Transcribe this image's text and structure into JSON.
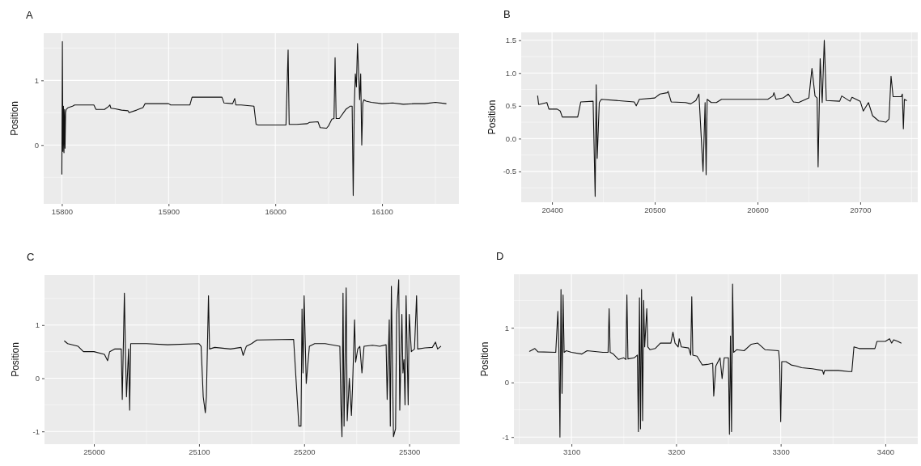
{
  "chart_data": [
    {
      "type": "line",
      "title": "A",
      "ylabel": "Position",
      "xlim": [
        15783,
        16172
      ],
      "ylim": [
        -0.91,
        1.73
      ],
      "xticks": [
        15800,
        15900,
        16000,
        16100
      ],
      "yticks": [
        0,
        1
      ],
      "grid": true,
      "marker": "none",
      "line_style": "solid",
      "series": [
        {
          "color": "#111111",
          "x": [
            15800,
            15800.5,
            15801,
            15801.5,
            15802,
            15802.5,
            15803,
            15803.5,
            15804,
            15806,
            15810,
            15812,
            15830,
            15832,
            15840,
            15844,
            15845,
            15846,
            15850,
            15856,
            15862,
            15863,
            15870,
            15876,
            15878,
            15900,
            15902,
            15920,
            15922,
            15950,
            15952,
            15960,
            15962,
            15963,
            15964,
            15968,
            15980,
            15982,
            15984,
            15990,
            16000,
            16010,
            16012,
            16013,
            16020,
            16030,
            16032,
            16040,
            16042,
            16048,
            16050,
            16053,
            16055,
            16056,
            16057,
            16060,
            16066,
            16070,
            16072,
            16073,
            16074,
            16075,
            16076,
            16077,
            16078,
            16079,
            16080,
            16081,
            16082,
            16083,
            16085,
            16090,
            16100,
            16110,
            16120,
            16130,
            16140,
            16150,
            16160
          ],
          "values": [
            -0.45,
            1.6,
            -0.1,
            0.6,
            -0.12,
            0.55,
            -0.05,
            0.5,
            0.55,
            0.58,
            0.6,
            0.62,
            0.62,
            0.55,
            0.55,
            0.6,
            0.62,
            0.57,
            0.56,
            0.54,
            0.53,
            0.5,
            0.54,
            0.58,
            0.64,
            0.64,
            0.62,
            0.62,
            0.74,
            0.74,
            0.65,
            0.64,
            0.72,
            0.62,
            0.62,
            0.62,
            0.6,
            0.32,
            0.31,
            0.31,
            0.31,
            0.31,
            1.47,
            0.32,
            0.32,
            0.33,
            0.35,
            0.36,
            0.27,
            0.26,
            0.3,
            0.4,
            0.41,
            1.35,
            0.41,
            0.41,
            0.55,
            0.6,
            0.6,
            -0.78,
            0.6,
            1.1,
            0.9,
            1.57,
            1.15,
            0.7,
            1.1,
            0.0,
            0.65,
            0.7,
            0.68,
            0.66,
            0.64,
            0.65,
            0.63,
            0.64,
            0.64,
            0.66,
            0.64
          ]
        }
      ]
    },
    {
      "type": "line",
      "title": "B",
      "ylabel": "Position",
      "xlim": [
        20370,
        20756
      ],
      "ylim": [
        -0.97,
        1.62
      ],
      "xticks": [
        20400,
        20500,
        20600,
        20700
      ],
      "yticks": [
        {
          "value": -0.5,
          "label": "-0.5"
        },
        {
          "value": 0,
          "label": "0.0"
        },
        {
          "value": 0.5,
          "label": "0.5"
        },
        {
          "value": 1,
          "label": "1.0"
        },
        {
          "value": 1.5,
          "label": "1.5"
        }
      ],
      "grid": true,
      "marker": "none",
      "line_style": "solid",
      "series": [
        {
          "color": "#111111",
          "x": [
            20386,
            20387,
            20395,
            20397,
            20405,
            20408,
            20410,
            20425,
            20428,
            20440,
            20442,
            20443,
            20444,
            20446,
            20448,
            20480,
            20482,
            20485,
            20500,
            20505,
            20512,
            20513,
            20516,
            20530,
            20535,
            20540,
            20543,
            20547,
            20549,
            20550,
            20551,
            20555,
            20560,
            20565,
            20610,
            20615,
            20616,
            20618,
            20625,
            20630,
            20635,
            20640,
            20650,
            20653,
            20656,
            20658,
            20659,
            20661,
            20663,
            20665,
            20667,
            20680,
            20682,
            20690,
            20692,
            20700,
            20703,
            20708,
            20712,
            20718,
            20725,
            20728,
            20730,
            20732,
            20740,
            20741,
            20742,
            20743,
            20745
          ],
          "values": [
            0.65,
            0.52,
            0.55,
            0.45,
            0.45,
            0.42,
            0.33,
            0.33,
            0.56,
            0.57,
            -0.88,
            0.82,
            -0.3,
            0.55,
            0.6,
            0.56,
            0.5,
            0.6,
            0.62,
            0.68,
            0.7,
            0.72,
            0.56,
            0.55,
            0.53,
            0.58,
            0.68,
            -0.5,
            0.55,
            -0.55,
            0.6,
            0.55,
            0.55,
            0.6,
            0.6,
            0.65,
            0.7,
            0.6,
            0.62,
            0.68,
            0.56,
            0.55,
            0.62,
            1.07,
            0.65,
            0.62,
            -0.43,
            1.22,
            0.55,
            1.5,
            0.58,
            0.57,
            0.65,
            0.57,
            0.63,
            0.57,
            0.42,
            0.55,
            0.35,
            0.27,
            0.25,
            0.3,
            0.95,
            0.64,
            0.64,
            0.68,
            0.15,
            0.6,
            0.58
          ]
        }
      ]
    },
    {
      "type": "line",
      "title": "C",
      "ylabel": "Position",
      "xlim": [
        24953,
        25348
      ],
      "ylim": [
        -1.24,
        1.94
      ],
      "xticks": [
        25000,
        25100,
        25200,
        25300
      ],
      "yticks": [
        -1,
        0,
        1
      ],
      "grid": true,
      "marker": "none",
      "line_style": "solid",
      "series": [
        {
          "color": "#111111",
          "x": [
            24972,
            24975,
            24985,
            24990,
            25000,
            25010,
            25013,
            25015,
            25020,
            25026,
            25027,
            25029,
            25030,
            25031,
            25033,
            25034,
            25035,
            25050,
            25070,
            25100,
            25102,
            25104,
            25106,
            25107,
            25109,
            25110,
            25115,
            25130,
            25140,
            25142,
            25145,
            25150,
            25155,
            25190,
            25195,
            25197,
            25198,
            25199,
            25200,
            25202,
            25205,
            25210,
            25220,
            25234,
            25235,
            25236,
            25237,
            25238,
            25239,
            25240,
            25241,
            25243,
            25245,
            25246,
            25248,
            25249,
            25251,
            25253,
            25255,
            25257,
            25265,
            25272,
            25278,
            25279,
            25281,
            25282,
            25283,
            25285,
            25287,
            25288,
            25290,
            25291,
            25293,
            25294,
            25295,
            25296,
            25297,
            25299,
            25300,
            25302,
            25305,
            25307,
            25308,
            25315,
            25322,
            25325,
            25327,
            25330
          ],
          "values": [
            0.7,
            0.65,
            0.6,
            0.5,
            0.5,
            0.45,
            0.33,
            0.5,
            0.55,
            0.55,
            -0.4,
            1.6,
            0.5,
            -0.35,
            0.55,
            -0.6,
            0.65,
            0.65,
            0.63,
            0.65,
            0.6,
            -0.35,
            -0.65,
            -0.35,
            1.55,
            0.55,
            0.58,
            0.55,
            0.58,
            0.43,
            0.6,
            0.65,
            0.72,
            0.73,
            -0.9,
            -0.9,
            1.3,
            0.1,
            1.55,
            -0.1,
            0.6,
            0.65,
            0.65,
            0.6,
            -0.5,
            -1.1,
            1.6,
            -0.9,
            0.4,
            1.7,
            -0.8,
            0.0,
            -0.7,
            -0.2,
            1.1,
            0.3,
            0.55,
            0.6,
            0.1,
            0.6,
            0.62,
            0.6,
            0.63,
            -0.4,
            1.1,
            -0.9,
            1.73,
            -1.1,
            -0.95,
            1.2,
            1.85,
            -0.6,
            1.2,
            0.1,
            0.35,
            -0.5,
            1.55,
            -0.5,
            1.2,
            0.5,
            0.55,
            1.55,
            0.55,
            0.57,
            0.58,
            0.68,
            0.55,
            0.6
          ]
        }
      ]
    },
    {
      "type": "line",
      "title": "D",
      "ylabel": "Position",
      "xlim": [
        3045,
        3431
      ],
      "ylim": [
        -1.13,
        1.98
      ],
      "xticks": [
        3100,
        3200,
        3300,
        3400
      ],
      "yticks": [
        -1,
        0,
        1
      ],
      "grid": true,
      "marker": "none",
      "line_style": "solid",
      "series": [
        {
          "color": "#111111",
          "x": [
            3060,
            3065,
            3068,
            3085,
            3087,
            3088,
            3089,
            3090,
            3091,
            3092,
            3093,
            3095,
            3100,
            3110,
            3115,
            3130,
            3135,
            3136,
            3137,
            3140,
            3145,
            3150,
            3152,
            3153,
            3154,
            3160,
            3163,
            3164,
            3165,
            3166,
            3167,
            3168,
            3169,
            3170,
            3172,
            3173,
            3175,
            3180,
            3185,
            3195,
            3197,
            3199,
            3202,
            3203,
            3205,
            3212,
            3214,
            3215,
            3216,
            3220,
            3225,
            3230,
            3235,
            3236,
            3238,
            3242,
            3244,
            3246,
            3250,
            3251,
            3252,
            3253,
            3254,
            3255,
            3258,
            3265,
            3272,
            3278,
            3285,
            3298,
            3299,
            3300,
            3301,
            3305,
            3310,
            3315,
            3320,
            3330,
            3340,
            3341,
            3342,
            3355,
            3365,
            3368,
            3370,
            3375,
            3385,
            3390,
            3392,
            3400,
            3404,
            3406,
            3408,
            3412,
            3415
          ],
          "values": [
            0.57,
            0.62,
            0.56,
            0.55,
            1.3,
            0.6,
            -1.0,
            1.7,
            -0.2,
            1.6,
            0.55,
            0.58,
            0.55,
            0.52,
            0.58,
            0.55,
            0.55,
            1.35,
            0.55,
            0.52,
            0.42,
            0.45,
            0.42,
            1.6,
            0.43,
            0.45,
            0.5,
            -0.9,
            1.55,
            -0.85,
            1.7,
            -0.7,
            1.5,
            0.65,
            1.35,
            0.65,
            0.6,
            0.62,
            0.72,
            0.72,
            0.92,
            0.72,
            0.65,
            0.8,
            0.65,
            0.63,
            0.5,
            1.57,
            0.5,
            0.48,
            0.32,
            0.33,
            0.35,
            -0.25,
            0.3,
            0.45,
            0.07,
            0.45,
            0.45,
            -0.95,
            0.85,
            -0.9,
            1.8,
            0.55,
            0.6,
            0.58,
            0.7,
            0.72,
            0.6,
            0.58,
            0.38,
            -0.72,
            0.38,
            0.38,
            0.32,
            0.3,
            0.27,
            0.25,
            0.22,
            0.15,
            0.22,
            0.22,
            0.2,
            0.2,
            0.65,
            0.62,
            0.62,
            0.62,
            0.75,
            0.75,
            0.8,
            0.72,
            0.78,
            0.75,
            0.72
          ]
        }
      ]
    }
  ]
}
